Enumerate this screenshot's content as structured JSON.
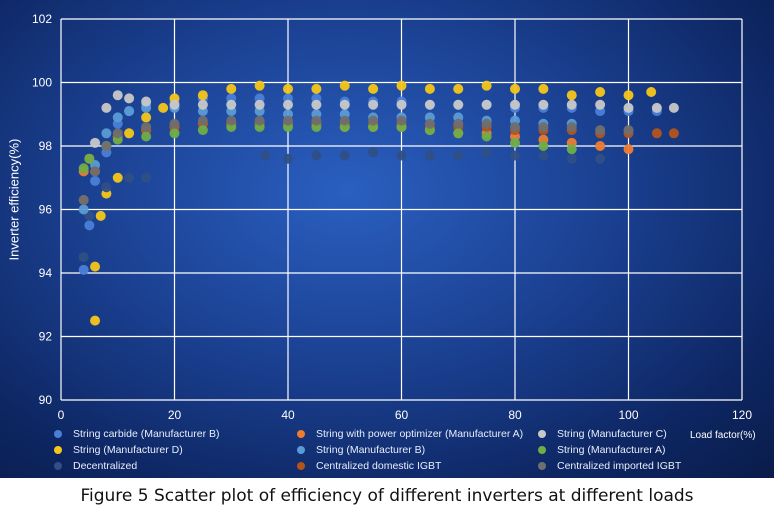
{
  "caption": "Figure 5 Scatter plot of efficiency of different inverters at different loads",
  "chart_data": {
    "type": "scatter",
    "title": "",
    "xlabel": "Load factor(%)",
    "ylabel": "Inverter efficiency(%)",
    "xlim": [
      0,
      120
    ],
    "ylim": [
      90,
      102
    ],
    "xticks": [
      0,
      20,
      40,
      60,
      80,
      100,
      120
    ],
    "yticks": [
      90,
      92,
      94,
      96,
      98,
      100,
      102
    ],
    "grid": true,
    "legend_position": "bottom",
    "series": [
      {
        "name": "String carbide (Manufacturer B)",
        "color": "#4a7fd8",
        "marker": "circle",
        "x": [
          4,
          5,
          6,
          8,
          10,
          12,
          15,
          20,
          25,
          30,
          35,
          40,
          45,
          50,
          55,
          60,
          65,
          70,
          75,
          80,
          85,
          90,
          95,
          100,
          105
        ],
        "y": [
          94.1,
          95.5,
          96.9,
          97.8,
          98.7,
          99.1,
          99.3,
          99.4,
          99.5,
          99.5,
          99.5,
          99.5,
          99.5,
          99.4,
          99.4,
          99.4,
          99.3,
          99.3,
          99.3,
          99.2,
          99.2,
          99.2,
          99.1,
          99.1,
          99.1
        ]
      },
      {
        "name": "String (Manufacturer D)",
        "color": "#f6c619",
        "marker": "circle",
        "x": [
          6,
          6,
          7,
          8,
          10,
          12,
          15,
          18,
          20,
          25,
          30,
          35,
          40,
          45,
          50,
          55,
          60,
          65,
          70,
          75,
          80,
          85,
          90,
          95,
          100,
          104
        ],
        "y": [
          92.5,
          94.2,
          95.8,
          96.5,
          97.0,
          98.4,
          98.9,
          99.2,
          99.5,
          99.6,
          99.8,
          99.9,
          99.8,
          99.8,
          99.9,
          99.8,
          99.9,
          99.8,
          99.8,
          99.9,
          99.8,
          99.8,
          99.6,
          99.7,
          99.6,
          99.7
        ]
      },
      {
        "name": "Decentralized",
        "color": "#2f4f86",
        "marker": "circle",
        "x": [
          4,
          5,
          8,
          12,
          15,
          36,
          40,
          45,
          50,
          55,
          60,
          65,
          70,
          75,
          80,
          85,
          90,
          95
        ],
        "y": [
          94.5,
          95.8,
          96.7,
          97.0,
          97.0,
          97.7,
          97.6,
          97.7,
          97.7,
          97.8,
          97.7,
          97.7,
          97.7,
          97.8,
          97.7,
          97.7,
          97.6,
          97.6
        ]
      },
      {
        "name": "String with power optimizer (Manufacturer A)",
        "color": "#ed7d31",
        "marker": "circle",
        "x": [
          4,
          5,
          8,
          10,
          15,
          20,
          25,
          30,
          35,
          40,
          45,
          50,
          55,
          60,
          65,
          70,
          75,
          80,
          85,
          90,
          95,
          100
        ],
        "y": [
          97.2,
          97.6,
          98.0,
          98.3,
          98.5,
          98.6,
          98.7,
          98.7,
          98.7,
          98.7,
          98.7,
          98.6,
          98.6,
          98.6,
          98.5,
          98.4,
          98.4,
          98.3,
          98.2,
          98.1,
          98.0,
          97.9
        ]
      },
      {
        "name": "String (Manufacturer B)",
        "color": "#5b9bd5",
        "marker": "circle",
        "x": [
          4,
          6,
          8,
          10,
          12,
          15,
          20,
          25,
          30,
          35,
          40,
          45,
          50,
          55,
          60,
          65,
          70,
          75,
          80,
          85,
          90
        ],
        "y": [
          96.0,
          97.4,
          98.4,
          98.9,
          99.1,
          99.2,
          99.2,
          99.1,
          99.1,
          99.1,
          99.0,
          99.0,
          99.0,
          98.9,
          98.9,
          98.9,
          98.9,
          98.8,
          98.8,
          98.7,
          98.7
        ]
      },
      {
        "name": "Centralized domestic IGBT",
        "color": "#b3541e",
        "marker": "circle",
        "x": [
          4,
          6,
          8,
          10,
          15,
          20,
          25,
          30,
          35,
          40,
          45,
          50,
          55,
          60,
          65,
          70,
          75,
          80,
          85,
          90,
          95,
          100,
          105,
          108
        ],
        "y": [
          96.3,
          97.2,
          98.0,
          98.3,
          98.5,
          98.6,
          98.7,
          98.7,
          98.7,
          98.7,
          98.7,
          98.7,
          98.7,
          98.7,
          98.6,
          98.6,
          98.6,
          98.5,
          98.5,
          98.5,
          98.4,
          98.4,
          98.4,
          98.4
        ]
      },
      {
        "name": "String (Manufacturer C)",
        "color": "#c8c8c8",
        "marker": "circle",
        "x": [
          6,
          8,
          10,
          12,
          15,
          20,
          25,
          30,
          35,
          40,
          45,
          50,
          55,
          60,
          65,
          70,
          75,
          80,
          85,
          90,
          95,
          100,
          105,
          108
        ],
        "y": [
          98.1,
          99.2,
          99.6,
          99.5,
          99.4,
          99.3,
          99.3,
          99.3,
          99.3,
          99.3,
          99.3,
          99.3,
          99.3,
          99.3,
          99.3,
          99.3,
          99.3,
          99.3,
          99.3,
          99.3,
          99.3,
          99.2,
          99.2,
          99.2
        ]
      },
      {
        "name": "String (Manufacturer A)",
        "color": "#70ad47",
        "marker": "circle",
        "x": [
          4,
          5,
          8,
          10,
          15,
          20,
          25,
          30,
          35,
          40,
          45,
          50,
          55,
          60,
          65,
          70,
          75,
          80,
          85,
          90
        ],
        "y": [
          97.3,
          97.6,
          98.0,
          98.2,
          98.3,
          98.4,
          98.5,
          98.6,
          98.6,
          98.6,
          98.6,
          98.6,
          98.6,
          98.6,
          98.5,
          98.4,
          98.3,
          98.1,
          98.0,
          97.9
        ]
      },
      {
        "name": "Centralized imported IGBT",
        "color": "#6f6f6f",
        "marker": "circle",
        "x": [
          4,
          6,
          8,
          10,
          15,
          20,
          25,
          30,
          35,
          40,
          45,
          50,
          55,
          60,
          65,
          70,
          75,
          80,
          85,
          90,
          95,
          100
        ],
        "y": [
          96.3,
          97.2,
          98.0,
          98.4,
          98.6,
          98.7,
          98.8,
          98.8,
          98.8,
          98.8,
          98.8,
          98.8,
          98.8,
          98.8,
          98.7,
          98.7,
          98.7,
          98.6,
          98.6,
          98.6,
          98.5,
          98.5
        ]
      }
    ]
  }
}
